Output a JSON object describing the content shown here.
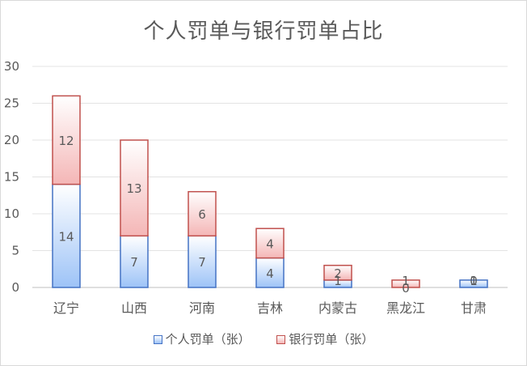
{
  "chart_data": {
    "type": "bar",
    "stacked": true,
    "title": "个人罚单与银行罚单占比",
    "categories": [
      "辽宁",
      "山西",
      "河南",
      "吉林",
      "内蒙古",
      "黑龙江",
      "甘肃"
    ],
    "series": [
      {
        "name": "个人罚单（张）",
        "values": [
          14,
          7,
          7,
          4,
          1,
          0,
          1
        ],
        "color": "#4472c4",
        "fill_top": "#ffffff",
        "fill_bottom": "#9dc3f7"
      },
      {
        "name": "银行罚单（张）",
        "values": [
          12,
          13,
          6,
          4,
          2,
          1,
          0
        ],
        "color": "#c0504d",
        "fill_top": "#ffffff",
        "fill_bottom": "#f4b6b6"
      }
    ],
    "ylim": [
      0,
      30
    ],
    "yticks": [
      0,
      5,
      10,
      15,
      20,
      25,
      30
    ],
    "grid": true,
    "legend": "bottom"
  }
}
